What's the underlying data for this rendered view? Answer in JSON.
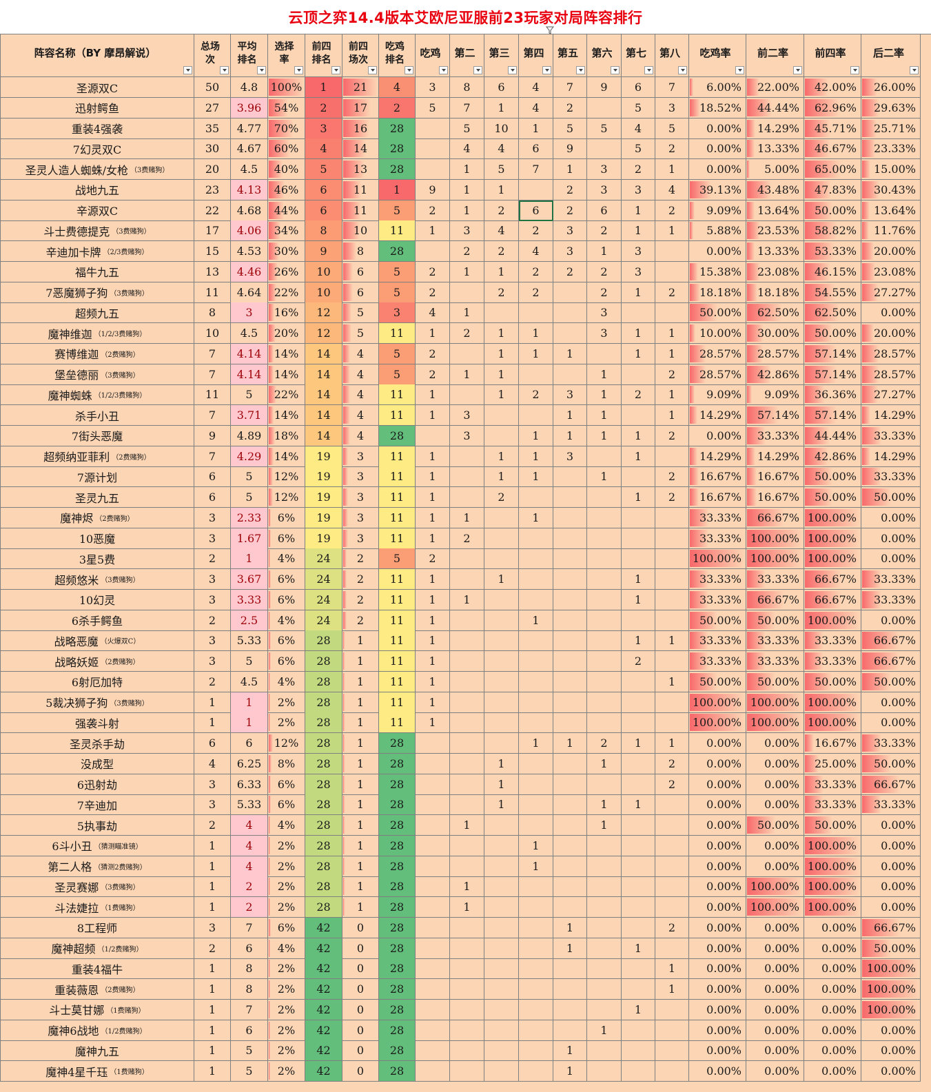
{
  "title": "云顶之弈14.4版本艾欧尼亚服前23玩家对局阵容排行",
  "headers": [
    "阵容名称（BY 摩昂解说）",
    "总场次",
    "平均排名",
    "选择率",
    "前四排名",
    "前四场次",
    "吃鸡排名",
    "吃鸡",
    "第二",
    "第三",
    "第四",
    "第五",
    "第六",
    "第七",
    "第八",
    "吃鸡率",
    "前二率",
    "前四率",
    "后二率"
  ],
  "rows": [
    {
      "name": "圣源双C",
      "note": "",
      "total": "50",
      "avg": "4.8",
      "sel": "100%",
      "top4rank": "1",
      "top4": "21",
      "winrank": "4",
      "p": [
        "3",
        "8",
        "6",
        "4",
        "7",
        "9",
        "6",
        "7"
      ],
      "win": "6.00%",
      "top2": "22.00%",
      "top4r": "42.00%",
      "bot2": "26.00%"
    },
    {
      "name": "迅射鳄鱼",
      "note": "",
      "total": "27",
      "avg": "3.96",
      "sel": "54%",
      "top4rank": "2",
      "top4": "17",
      "winrank": "2",
      "p": [
        "5",
        "7",
        "1",
        "4",
        "2",
        "",
        "5",
        "3"
      ],
      "win": "18.52%",
      "top2": "44.44%",
      "top4r": "62.96%",
      "bot2": "29.63%"
    },
    {
      "name": "重装4强袭",
      "note": "",
      "total": "35",
      "avg": "4.77",
      "sel": "70%",
      "top4rank": "3",
      "top4": "16",
      "winrank": "28",
      "p": [
        "",
        "5",
        "10",
        "1",
        "5",
        "5",
        "4",
        "5"
      ],
      "win": "0.00%",
      "top2": "14.29%",
      "top4r": "45.71%",
      "bot2": "25.71%"
    },
    {
      "name": "7幻灵双C",
      "note": "",
      "total": "30",
      "avg": "4.67",
      "sel": "60%",
      "top4rank": "4",
      "top4": "14",
      "winrank": "28",
      "p": [
        "",
        "4",
        "4",
        "6",
        "9",
        "",
        "5",
        "2"
      ],
      "win": "0.00%",
      "top2": "13.33%",
      "top4r": "46.67%",
      "bot2": "23.33%"
    },
    {
      "name": "圣灵人造人蜘蛛/女枪",
      "note": "（3费赌狗）",
      "total": "20",
      "avg": "4.5",
      "sel": "40%",
      "top4rank": "5",
      "top4": "13",
      "winrank": "28",
      "p": [
        "",
        "1",
        "5",
        "7",
        "1",
        "3",
        "2",
        "1"
      ],
      "win": "0.00%",
      "top2": "5.00%",
      "top4r": "65.00%",
      "bot2": "15.00%"
    },
    {
      "name": "战地九五",
      "note": "",
      "total": "23",
      "avg": "4.13",
      "sel": "46%",
      "top4rank": "6",
      "top4": "11",
      "winrank": "1",
      "p": [
        "9",
        "1",
        "1",
        "",
        "2",
        "3",
        "3",
        "4"
      ],
      "win": "39.13%",
      "top2": "43.48%",
      "top4r": "47.83%",
      "bot2": "30.43%"
    },
    {
      "name": "辛源双C",
      "note": "",
      "total": "22",
      "avg": "4.68",
      "sel": "44%",
      "top4rank": "6",
      "top4": "11",
      "winrank": "5",
      "p": [
        "2",
        "1",
        "2",
        "6",
        "2",
        "6",
        "1",
        "2"
      ],
      "win": "9.09%",
      "top2": "13.64%",
      "top4r": "50.00%",
      "bot2": "13.64%"
    },
    {
      "name": "斗士费德提克",
      "note": "（3费赌狗）",
      "total": "17",
      "avg": "4.06",
      "sel": "34%",
      "top4rank": "8",
      "top4": "10",
      "winrank": "11",
      "p": [
        "1",
        "3",
        "4",
        "2",
        "3",
        "2",
        "1",
        "1"
      ],
      "win": "5.88%",
      "top2": "23.53%",
      "top4r": "58.82%",
      "bot2": "11.76%"
    },
    {
      "name": "辛迪加卡牌",
      "note": "（2/3费赌狗）",
      "total": "15",
      "avg": "4.53",
      "sel": "30%",
      "top4rank": "9",
      "top4": "8",
      "winrank": "28",
      "p": [
        "",
        "2",
        "2",
        "4",
        "3",
        "1",
        "3",
        ""
      ],
      "win": "0.00%",
      "top2": "13.33%",
      "top4r": "53.33%",
      "bot2": "20.00%"
    },
    {
      "name": "福牛九五",
      "note": "",
      "total": "13",
      "avg": "4.46",
      "sel": "26%",
      "top4rank": "10",
      "top4": "6",
      "winrank": "5",
      "p": [
        "2",
        "1",
        "1",
        "2",
        "2",
        "2",
        "3",
        ""
      ],
      "win": "15.38%",
      "top2": "23.08%",
      "top4r": "46.15%",
      "bot2": "23.08%"
    },
    {
      "name": "7恶魔狮子狗",
      "note": "（3费赌狗）",
      "total": "11",
      "avg": "4.64",
      "sel": "22%",
      "top4rank": "10",
      "top4": "6",
      "winrank": "5",
      "p": [
        "2",
        "",
        "2",
        "2",
        "",
        "2",
        "1",
        "2"
      ],
      "win": "18.18%",
      "top2": "18.18%",
      "top4r": "54.55%",
      "bot2": "27.27%"
    },
    {
      "name": "超频九五",
      "note": "",
      "total": "8",
      "avg": "3",
      "sel": "16%",
      "top4rank": "12",
      "top4": "5",
      "winrank": "3",
      "p": [
        "4",
        "1",
        "",
        "",
        "",
        "3",
        "",
        ""
      ],
      "win": "50.00%",
      "top2": "62.50%",
      "top4r": "62.50%",
      "bot2": "0.00%"
    },
    {
      "name": "魔神维迦",
      "note": "（1/2/3费赌狗）",
      "total": "10",
      "avg": "4.5",
      "sel": "20%",
      "top4rank": "12",
      "top4": "5",
      "winrank": "11",
      "p": [
        "1",
        "2",
        "1",
        "1",
        "",
        "3",
        "1",
        "1"
      ],
      "win": "10.00%",
      "top2": "30.00%",
      "top4r": "50.00%",
      "bot2": "20.00%"
    },
    {
      "name": "赛博维迦",
      "note": "（2费赌狗）",
      "total": "7",
      "avg": "4.14",
      "sel": "14%",
      "top4rank": "14",
      "top4": "4",
      "winrank": "5",
      "p": [
        "2",
        "",
        "1",
        "1",
        "1",
        "",
        "1",
        "1"
      ],
      "win": "28.57%",
      "top2": "28.57%",
      "top4r": "57.14%",
      "bot2": "28.57%"
    },
    {
      "name": "堡垒德丽",
      "note": "（3费赌狗）",
      "total": "7",
      "avg": "4.14",
      "sel": "14%",
      "top4rank": "14",
      "top4": "4",
      "winrank": "5",
      "p": [
        "2",
        "1",
        "1",
        "",
        "",
        "1",
        "",
        "2"
      ],
      "win": "28.57%",
      "top2": "42.86%",
      "top4r": "57.14%",
      "bot2": "28.57%"
    },
    {
      "name": "魔神蜘蛛",
      "note": "（1/2/3费赌狗）",
      "total": "11",
      "avg": "5",
      "sel": "22%",
      "top4rank": "14",
      "top4": "4",
      "winrank": "11",
      "p": [
        "1",
        "",
        "1",
        "2",
        "3",
        "1",
        "2",
        "1"
      ],
      "win": "9.09%",
      "top2": "9.09%",
      "top4r": "36.36%",
      "bot2": "27.27%"
    },
    {
      "name": "杀手小丑",
      "note": "",
      "total": "7",
      "avg": "3.71",
      "sel": "14%",
      "top4rank": "14",
      "top4": "4",
      "winrank": "11",
      "p": [
        "1",
        "3",
        "",
        "",
        "1",
        "1",
        "",
        "1"
      ],
      "win": "14.29%",
      "top2": "57.14%",
      "top4r": "57.14%",
      "bot2": "14.29%"
    },
    {
      "name": "7街头恶魔",
      "note": "",
      "total": "9",
      "avg": "4.89",
      "sel": "18%",
      "top4rank": "14",
      "top4": "4",
      "winrank": "28",
      "p": [
        "",
        "3",
        "",
        "1",
        "1",
        "1",
        "1",
        "2"
      ],
      "win": "0.00%",
      "top2": "33.33%",
      "top4r": "44.44%",
      "bot2": "33.33%"
    },
    {
      "name": "超频纳亚菲利",
      "note": "（2费赌狗）",
      "total": "7",
      "avg": "4.29",
      "sel": "14%",
      "top4rank": "19",
      "top4": "3",
      "winrank": "11",
      "p": [
        "1",
        "",
        "1",
        "1",
        "3",
        "",
        "1",
        ""
      ],
      "win": "14.29%",
      "top2": "14.29%",
      "top4r": "42.86%",
      "bot2": "14.29%"
    },
    {
      "name": "7源计划",
      "note": "",
      "total": "6",
      "avg": "5",
      "sel": "12%",
      "top4rank": "19",
      "top4": "3",
      "winrank": "11",
      "p": [
        "1",
        "",
        "1",
        "1",
        "",
        "1",
        "",
        "2"
      ],
      "win": "16.67%",
      "top2": "16.67%",
      "top4r": "50.00%",
      "bot2": "33.33%"
    },
    {
      "name": "圣灵九五",
      "note": "",
      "total": "6",
      "avg": "5",
      "sel": "12%",
      "top4rank": "19",
      "top4": "3",
      "winrank": "11",
      "p": [
        "1",
        "",
        "2",
        "",
        "",
        "",
        "1",
        "2"
      ],
      "win": "16.67%",
      "top2": "16.67%",
      "top4r": "50.00%",
      "bot2": "50.00%"
    },
    {
      "name": "魔神烬",
      "note": "（2费赌狗）",
      "total": "3",
      "avg": "2.33",
      "sel": "6%",
      "top4rank": "19",
      "top4": "3",
      "winrank": "11",
      "p": [
        "1",
        "1",
        "",
        "1",
        "",
        "",
        "",
        ""
      ],
      "win": "33.33%",
      "top2": "66.67%",
      "top4r": "100.00%",
      "bot2": "0.00%"
    },
    {
      "name": "10恶魔",
      "note": "",
      "total": "3",
      "avg": "1.67",
      "sel": "6%",
      "top4rank": "19",
      "top4": "3",
      "winrank": "11",
      "p": [
        "1",
        "2",
        "",
        "",
        "",
        "",
        "",
        ""
      ],
      "win": "33.33%",
      "top2": "100.00%",
      "top4r": "100.00%",
      "bot2": "0.00%"
    },
    {
      "name": "3星5费",
      "note": "",
      "total": "2",
      "avg": "1",
      "sel": "4%",
      "top4rank": "24",
      "top4": "2",
      "winrank": "5",
      "p": [
        "2",
        "",
        "",
        "",
        "",
        "",
        "",
        ""
      ],
      "win": "100.00%",
      "top2": "100.00%",
      "top4r": "100.00%",
      "bot2": "0.00%"
    },
    {
      "name": "超频悠米",
      "note": "（3费赌狗）",
      "total": "3",
      "avg": "3.67",
      "sel": "6%",
      "top4rank": "24",
      "top4": "2",
      "winrank": "11",
      "p": [
        "1",
        "",
        "1",
        "",
        "",
        "",
        "1",
        ""
      ],
      "win": "33.33%",
      "top2": "33.33%",
      "top4r": "66.67%",
      "bot2": "33.33%"
    },
    {
      "name": "10幻灵",
      "note": "",
      "total": "3",
      "avg": "3.33",
      "sel": "6%",
      "top4rank": "24",
      "top4": "2",
      "winrank": "11",
      "p": [
        "1",
        "1",
        "",
        "",
        "",
        "",
        "1",
        ""
      ],
      "win": "33.33%",
      "top2": "66.67%",
      "top4r": "66.67%",
      "bot2": "33.33%"
    },
    {
      "name": "6杀手鳄鱼",
      "note": "",
      "total": "2",
      "avg": "2.5",
      "sel": "4%",
      "top4rank": "24",
      "top4": "2",
      "winrank": "11",
      "p": [
        "1",
        "",
        "",
        "1",
        "",
        "",
        "",
        ""
      ],
      "win": "50.00%",
      "top2": "50.00%",
      "top4r": "100.00%",
      "bot2": "0.00%"
    },
    {
      "name": "战略恶魔",
      "note": "（火爆双C）",
      "total": "3",
      "avg": "5.33",
      "sel": "6%",
      "top4rank": "28",
      "top4": "1",
      "winrank": "11",
      "p": [
        "1",
        "",
        "",
        "",
        "",
        "",
        "1",
        "1"
      ],
      "win": "33.33%",
      "top2": "33.33%",
      "top4r": "33.33%",
      "bot2": "66.67%"
    },
    {
      "name": "战略妖姬",
      "note": "（2费赌狗）",
      "total": "3",
      "avg": "5",
      "sel": "6%",
      "top4rank": "28",
      "top4": "1",
      "winrank": "11",
      "p": [
        "1",
        "",
        "",
        "",
        "",
        "",
        "2",
        ""
      ],
      "win": "33.33%",
      "top2": "33.33%",
      "top4r": "33.33%",
      "bot2": "66.67%"
    },
    {
      "name": "6射厄加特",
      "note": "",
      "total": "2",
      "avg": "4.5",
      "sel": "4%",
      "top4rank": "28",
      "top4": "1",
      "winrank": "11",
      "p": [
        "1",
        "",
        "",
        "",
        "",
        "",
        "",
        "1"
      ],
      "win": "50.00%",
      "top2": "50.00%",
      "top4r": "50.00%",
      "bot2": "50.00%"
    },
    {
      "name": "5裁决狮子狗",
      "note": "（3费赌狗）",
      "total": "1",
      "avg": "1",
      "sel": "2%",
      "top4rank": "28",
      "top4": "1",
      "winrank": "11",
      "p": [
        "1",
        "",
        "",
        "",
        "",
        "",
        "",
        ""
      ],
      "win": "100.00%",
      "top2": "100.00%",
      "top4r": "100.00%",
      "bot2": "0.00%"
    },
    {
      "name": "强袭斗射",
      "note": "",
      "total": "1",
      "avg": "1",
      "sel": "2%",
      "top4rank": "28",
      "top4": "1",
      "winrank": "11",
      "p": [
        "1",
        "",
        "",
        "",
        "",
        "",
        "",
        ""
      ],
      "win": "100.00%",
      "top2": "100.00%",
      "top4r": "100.00%",
      "bot2": "0.00%"
    },
    {
      "name": "圣灵杀手劫",
      "note": "",
      "total": "6",
      "avg": "6",
      "sel": "12%",
      "top4rank": "28",
      "top4": "1",
      "winrank": "28",
      "p": [
        "",
        "",
        "",
        "1",
        "1",
        "2",
        "1",
        "1"
      ],
      "win": "0.00%",
      "top2": "0.00%",
      "top4r": "16.67%",
      "bot2": "33.33%"
    },
    {
      "name": "没成型",
      "note": "",
      "total": "4",
      "avg": "6.25",
      "sel": "8%",
      "top4rank": "28",
      "top4": "1",
      "winrank": "28",
      "p": [
        "",
        "",
        "1",
        "",
        "",
        "1",
        "",
        "2"
      ],
      "win": "0.00%",
      "top2": "0.00%",
      "top4r": "25.00%",
      "bot2": "50.00%"
    },
    {
      "name": "6迅射劫",
      "note": "",
      "total": "3",
      "avg": "6.33",
      "sel": "6%",
      "top4rank": "28",
      "top4": "1",
      "winrank": "28",
      "p": [
        "",
        "",
        "1",
        "",
        "",
        "",
        "",
        "2"
      ],
      "win": "0.00%",
      "top2": "0.00%",
      "top4r": "33.33%",
      "bot2": "66.67%"
    },
    {
      "name": "7辛迪加",
      "note": "",
      "total": "3",
      "avg": "5.33",
      "sel": "6%",
      "top4rank": "28",
      "top4": "1",
      "winrank": "28",
      "p": [
        "",
        "",
        "1",
        "",
        "",
        "1",
        "1",
        ""
      ],
      "win": "0.00%",
      "top2": "0.00%",
      "top4r": "33.33%",
      "bot2": "33.33%"
    },
    {
      "name": "5执事劫",
      "note": "",
      "total": "2",
      "avg": "4",
      "sel": "4%",
      "top4rank": "28",
      "top4": "1",
      "winrank": "28",
      "p": [
        "",
        "1",
        "",
        "",
        "",
        "1",
        "",
        ""
      ],
      "win": "0.00%",
      "top2": "50.00%",
      "top4r": "50.00%",
      "bot2": "0.00%"
    },
    {
      "name": "6斗小丑",
      "note": "（猜测瞄准镜）",
      "total": "1",
      "avg": "4",
      "sel": "2%",
      "top4rank": "28",
      "top4": "1",
      "winrank": "28",
      "p": [
        "",
        "",
        "",
        "1",
        "",
        "",
        "",
        ""
      ],
      "win": "0.00%",
      "top2": "0.00%",
      "top4r": "100.00%",
      "bot2": "0.00%"
    },
    {
      "name": "第二人格",
      "note": "（猜测2费赌狗）",
      "total": "1",
      "avg": "4",
      "sel": "2%",
      "top4rank": "28",
      "top4": "1",
      "winrank": "28",
      "p": [
        "",
        "",
        "",
        "1",
        "",
        "",
        "",
        ""
      ],
      "win": "0.00%",
      "top2": "0.00%",
      "top4r": "100.00%",
      "bot2": "0.00%"
    },
    {
      "name": "圣灵赛娜",
      "note": "（3费赌狗）",
      "total": "1",
      "avg": "2",
      "sel": "2%",
      "top4rank": "28",
      "top4": "1",
      "winrank": "28",
      "p": [
        "",
        "1",
        "",
        "",
        "",
        "",
        "",
        ""
      ],
      "win": "0.00%",
      "top2": "100.00%",
      "top4r": "100.00%",
      "bot2": "0.00%"
    },
    {
      "name": "斗法婕拉",
      "note": "（1费赌狗）",
      "total": "1",
      "avg": "2",
      "sel": "2%",
      "top4rank": "28",
      "top4": "1",
      "winrank": "28",
      "p": [
        "",
        "1",
        "",
        "",
        "",
        "",
        "",
        ""
      ],
      "win": "0.00%",
      "top2": "100.00%",
      "top4r": "100.00%",
      "bot2": "0.00%"
    },
    {
      "name": "8工程师",
      "note": "",
      "total": "3",
      "avg": "7",
      "sel": "6%",
      "top4rank": "42",
      "top4": "0",
      "winrank": "28",
      "p": [
        "",
        "",
        "",
        "",
        "1",
        "",
        "",
        "2"
      ],
      "win": "0.00%",
      "top2": "0.00%",
      "top4r": "0.00%",
      "bot2": "66.67%"
    },
    {
      "name": "魔神超频",
      "note": "（1/2费赌狗）",
      "total": "2",
      "avg": "6",
      "sel": "4%",
      "top4rank": "42",
      "top4": "0",
      "winrank": "28",
      "p": [
        "",
        "",
        "",
        "",
        "1",
        "",
        "1",
        ""
      ],
      "win": "0.00%",
      "top2": "0.00%",
      "top4r": "0.00%",
      "bot2": "50.00%"
    },
    {
      "name": "重装4福牛",
      "note": "",
      "total": "1",
      "avg": "8",
      "sel": "2%",
      "top4rank": "42",
      "top4": "0",
      "winrank": "28",
      "p": [
        "",
        "",
        "",
        "",
        "",
        "",
        "",
        "1"
      ],
      "win": "0.00%",
      "top2": "0.00%",
      "top4r": "0.00%",
      "bot2": "100.00%"
    },
    {
      "name": "重装薇恩",
      "note": "（2费赌狗）",
      "total": "1",
      "avg": "8",
      "sel": "2%",
      "top4rank": "42",
      "top4": "0",
      "winrank": "28",
      "p": [
        "",
        "",
        "",
        "",
        "",
        "",
        "",
        "1"
      ],
      "win": "0.00%",
      "top2": "0.00%",
      "top4r": "0.00%",
      "bot2": "100.00%"
    },
    {
      "name": "斗士莫甘娜",
      "note": "（1费赌狗）",
      "total": "1",
      "avg": "7",
      "sel": "2%",
      "top4rank": "42",
      "top4": "0",
      "winrank": "28",
      "p": [
        "",
        "",
        "",
        "",
        "",
        "",
        "1",
        ""
      ],
      "win": "0.00%",
      "top2": "0.00%",
      "top4r": "0.00%",
      "bot2": "100.00%"
    },
    {
      "name": "魔神6战地",
      "note": "（1/2费赌狗）",
      "total": "1",
      "avg": "6",
      "sel": "2%",
      "top4rank": "42",
      "top4": "0",
      "winrank": "28",
      "p": [
        "",
        "",
        "",
        "",
        "",
        "1",
        "",
        ""
      ],
      "win": "0.00%",
      "top2": "0.00%",
      "top4r": "0.00%",
      "bot2": "0.00%"
    },
    {
      "name": "魔神九五",
      "note": "",
      "total": "1",
      "avg": "5",
      "sel": "2%",
      "top4rank": "42",
      "top4": "0",
      "winrank": "28",
      "p": [
        "",
        "",
        "",
        "",
        "1",
        "",
        "",
        ""
      ],
      "win": "0.00%",
      "top2": "0.00%",
      "top4r": "0.00%",
      "bot2": "0.00%"
    },
    {
      "name": "魔神4星千珏",
      "note": "（1费赌狗）",
      "total": "1",
      "avg": "5",
      "sel": "2%",
      "top4rank": "42",
      "top4": "0",
      "winrank": "28",
      "p": [
        "",
        "",
        "",
        "",
        "1",
        "",
        "",
        ""
      ],
      "win": "0.00%",
      "top2": "0.00%",
      "top4r": "0.00%",
      "bot2": "0.00%"
    }
  ],
  "colors": {
    "background": "#fcd5b4",
    "title": "#e8000e",
    "avg_highlight": "#ffc7ce",
    "databar": "#f8696b",
    "scale_low": "#f8696b",
    "scale_mid": "#ffeb84",
    "scale_high": "#63be7b",
    "selection": "#217346"
  }
}
